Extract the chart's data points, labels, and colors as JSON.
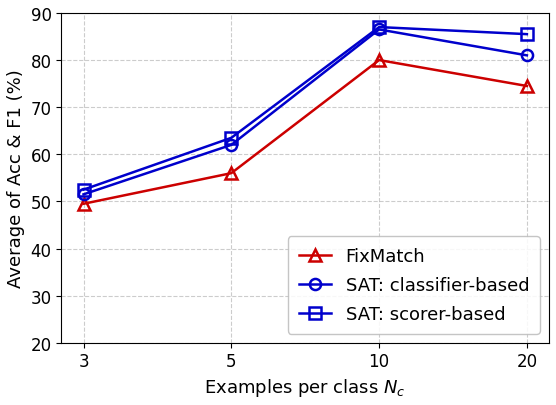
{
  "x_positions": [
    0,
    1,
    2,
    3
  ],
  "x_labels": [
    "3",
    "5",
    "10",
    "20"
  ],
  "fixmatch": [
    49.5,
    56.0,
    80.0,
    74.5
  ],
  "sat_classifier": [
    51.5,
    62.0,
    86.5,
    81.0
  ],
  "sat_scorer": [
    52.5,
    63.5,
    87.0,
    85.5
  ],
  "fixmatch_color": "#cc0000",
  "sat_color": "#0000cc",
  "ylabel": "Average of Acc & F1 (%)",
  "xlabel": "Examples per class $N_c$",
  "ylim": [
    20,
    90
  ],
  "yticks": [
    20,
    30,
    40,
    50,
    60,
    70,
    80,
    90
  ],
  "legend_labels": [
    "FixMatch",
    "SAT: classifier-based",
    "SAT: scorer-based"
  ],
  "grid_color": "#aaaaaa",
  "background_color": "#ffffff",
  "linewidth": 1.8,
  "markersize": 8,
  "markeredgewidth": 1.8,
  "legend_fontsize": 13,
  "axis_fontsize": 13,
  "tick_fontsize": 12
}
